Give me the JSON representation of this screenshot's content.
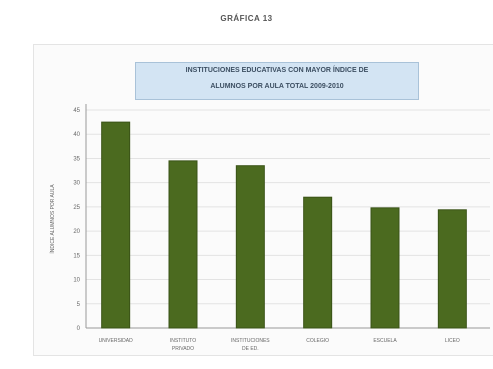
{
  "page_title": "GRÁFICA 13",
  "chart_data": {
    "type": "bar",
    "title": "INSTITUCIONES EDUCATIVAS CON MAYOR ÍNDICE DE ALUMNOS POR AULA TOTAL 2009-2010",
    "title_line1": "INSTITUCIONES EDUCATIVAS CON MAYOR ÍNDICE DE",
    "title_line2": "ALUMNOS POR AULA TOTAL 2009-2010",
    "ylabel": "ÍNDICE ALUMNOS POR AULA",
    "xlabel": "",
    "ylim": [
      0,
      45
    ],
    "yticks": [
      0,
      5,
      10,
      15,
      20,
      25,
      30,
      35,
      40,
      45
    ],
    "ytick_labels": [
      "0",
      "5",
      "10",
      "15",
      "20",
      "25",
      "30",
      "35",
      "40",
      "45"
    ],
    "categories": [
      [
        "UNIVERSIDAD"
      ],
      [
        "INSTITUTO",
        "PRIVADO"
      ],
      [
        "INSTITUCIONES",
        "DE ED."
      ],
      [
        "COLEGIO"
      ],
      [
        "ESCUELA"
      ],
      [
        "LICEO"
      ]
    ],
    "values": [
      42.5,
      34.5,
      33.5,
      27.0,
      24.8,
      24.4
    ],
    "grid": true,
    "bar_color": "#4b6a1f",
    "bar_edge": "#3a5317"
  }
}
